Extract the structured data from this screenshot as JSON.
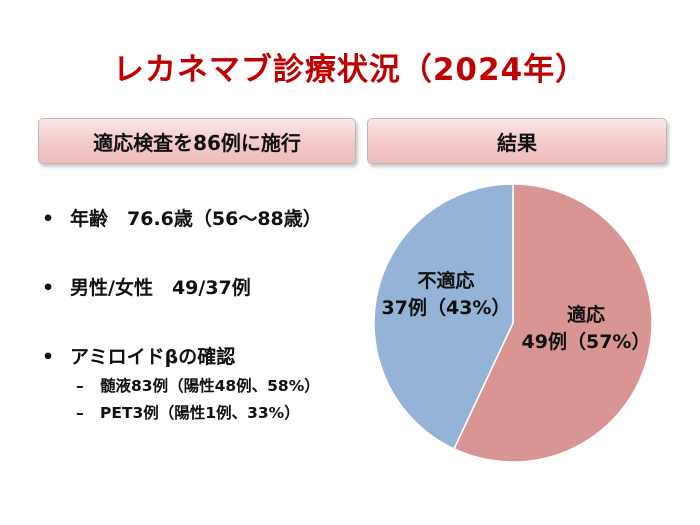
{
  "title": "レカネマブ診療状況（2024年）",
  "left_header": "適応検査を86例に施行",
  "right_header": "結果",
  "bullets": [
    {
      "text": "年齢　76.6歳（56〜88歳）"
    },
    {
      "text": "男性/女性　49/37例"
    },
    {
      "text": "アミロイドβの確認"
    }
  ],
  "sub_bullets": [
    {
      "text": "髄液83例（陽性48例、58%）"
    },
    {
      "text": "PET3例（陽性1例、33%）"
    }
  ],
  "bullet_marker": "•",
  "sub_marker": "–",
  "chart_data": {
    "type": "pie",
    "title": "",
    "slices": [
      {
        "label": "適応",
        "value_text": "49例（57%）",
        "count": 49,
        "percent": 57,
        "color": "#d99594"
      },
      {
        "label": "不適応",
        "value_text": "37例（43%）",
        "count": 37,
        "percent": 43,
        "color": "#95b3d7"
      }
    ],
    "start": "top",
    "direction": "clockwise"
  }
}
